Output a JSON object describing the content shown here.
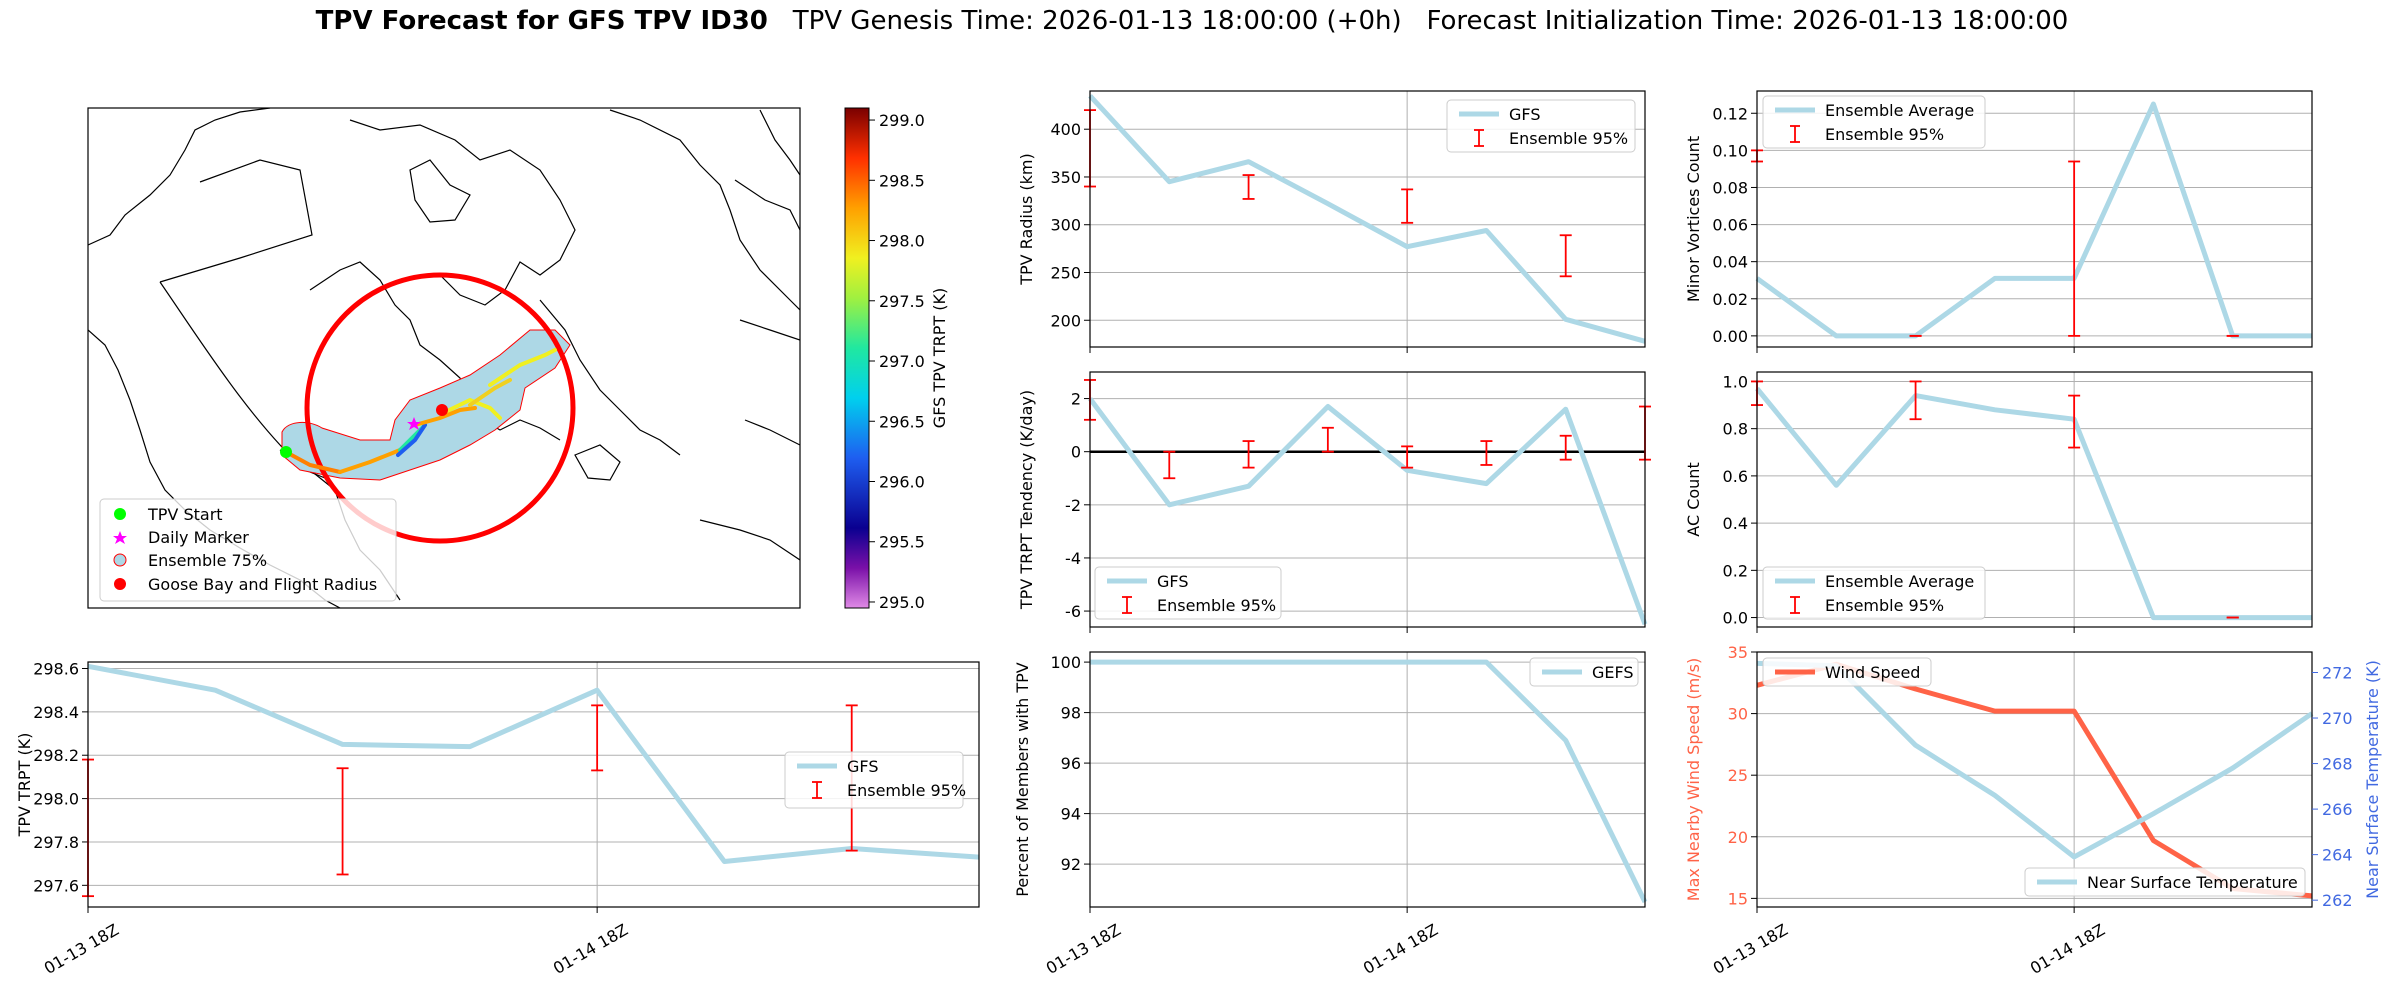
{
  "title": {
    "main": "TPV Forecast for GFS TPV ID30",
    "genesis": "TPV Genesis Time: 2026-01-13 18:00:00 (+0h)",
    "init": "Forecast Initialization Time: 2026-01-13 18:00:00"
  },
  "colors": {
    "gfs_line": "#add8e6",
    "error_bar": "#ff0000",
    "zero_line": "#000000",
    "wind": "#ff6347",
    "temp_axis": "#4169e1",
    "grid": "#b0b0b0"
  },
  "map": {
    "legend": [
      {
        "label": "TPV Start",
        "icon": "green-circle-icon",
        "color": "#00ff00"
      },
      {
        "label": "Daily Marker",
        "icon": "magenta-star-icon",
        "color": "#ff00ff"
      },
      {
        "label": "Ensemble 75%",
        "icon": "patch-icon",
        "color": "#add8e6"
      },
      {
        "label": "Goose Bay and Flight Radius",
        "icon": "red-circle-icon",
        "color": "#ff0000"
      }
    ],
    "colorbar": {
      "label": "GFS TPV TRPT (K)",
      "ticks": [
        "299.0",
        "298.5",
        "298.0",
        "297.5",
        "297.0",
        "296.5",
        "296.0",
        "295.5",
        "295.0"
      ],
      "min": 294.95,
      "max": 299.1
    }
  },
  "chart_data": [
    {
      "id": "trpt",
      "type": "line",
      "ylabel": "TPV TRPT (K)",
      "x": [
        0,
        1,
        2,
        3,
        4,
        5,
        6,
        7
      ],
      "x_ticks": [
        {
          "x": 0,
          "label": "01-13 18Z"
        },
        {
          "x": 4,
          "label": "01-14 18Z"
        }
      ],
      "xlim": [
        0,
        7
      ],
      "ylim": [
        297.5,
        298.63
      ],
      "y_ticks": [
        "297.6",
        "297.8",
        "298.0",
        "298.2",
        "298.4",
        "298.6"
      ],
      "legend": [
        "GFS",
        "Ensemble 95%"
      ],
      "series": [
        {
          "name": "GFS",
          "values": [
            298.61,
            298.5,
            298.25,
            298.24,
            298.5,
            297.71,
            297.77,
            297.73
          ]
        }
      ],
      "error_bars": [
        {
          "x": 0,
          "low": 297.55,
          "high": 298.18
        },
        {
          "x": 2,
          "low": 297.65,
          "high": 298.14
        },
        {
          "x": 4,
          "low": 298.13,
          "high": 298.43
        },
        {
          "x": 6,
          "low": 297.76,
          "high": 298.43
        }
      ]
    },
    {
      "id": "radius",
      "type": "line",
      "ylabel": "TPV Radius (km)",
      "x": [
        0,
        1,
        2,
        3,
        4,
        5,
        6,
        7
      ],
      "x_ticks": [
        {
          "x": 0,
          "label": ""
        },
        {
          "x": 4,
          "label": ""
        }
      ],
      "xlim": [
        0,
        7
      ],
      "ylim": [
        172,
        440
      ],
      "y_ticks": [
        "200",
        "250",
        "300",
        "350",
        "400"
      ],
      "legend": [
        "GFS",
        "Ensemble 95%"
      ],
      "series": [
        {
          "name": "GFS",
          "values": [
            435,
            345,
            366,
            322,
            277,
            294,
            201,
            178
          ]
        }
      ],
      "error_bars": [
        {
          "x": 0,
          "low": 340,
          "high": 420
        },
        {
          "x": 2,
          "low": 327,
          "high": 352
        },
        {
          "x": 4,
          "low": 302,
          "high": 337
        },
        {
          "x": 6,
          "low": 246,
          "high": 289
        }
      ]
    },
    {
      "id": "tendency",
      "type": "line",
      "ylabel": "TPV TRPT Tendency (K/day)",
      "x": [
        0,
        1,
        2,
        3,
        4,
        5,
        6,
        7
      ],
      "x_ticks": [
        {
          "x": 0,
          "label": ""
        },
        {
          "x": 4,
          "label": ""
        }
      ],
      "xlim": [
        0,
        7
      ],
      "ylim": [
        -6.6,
        3.0
      ],
      "y_ticks": [
        "-6",
        "-4",
        "-2",
        "0",
        "2"
      ],
      "legend": [
        "GFS",
        "Ensemble 95%"
      ],
      "zero_line": true,
      "series": [
        {
          "name": "GFS",
          "values": [
            2.0,
            -2.0,
            -1.3,
            1.7,
            -0.7,
            -1.2,
            1.6,
            -6.5
          ]
        }
      ],
      "error_bars": [
        {
          "x": 0,
          "low": 1.2,
          "high": 2.7
        },
        {
          "x": 1,
          "low": -1.0,
          "high": 0.0
        },
        {
          "x": 2,
          "low": -0.6,
          "high": 0.4
        },
        {
          "x": 3,
          "low": 0.0,
          "high": 0.9
        },
        {
          "x": 4,
          "low": -0.6,
          "high": 0.2
        },
        {
          "x": 5,
          "low": -0.5,
          "high": 0.4
        },
        {
          "x": 6,
          "low": -0.3,
          "high": 0.6
        },
        {
          "x": 7,
          "low": -0.3,
          "high": 1.7
        }
      ]
    },
    {
      "id": "members",
      "type": "line",
      "ylabel": "Percent of Members with TPV",
      "x": [
        0,
        1,
        2,
        3,
        4,
        5,
        6,
        7
      ],
      "x_ticks": [
        {
          "x": 0,
          "label": "01-13 18Z"
        },
        {
          "x": 4,
          "label": "01-14 18Z"
        }
      ],
      "xlim": [
        0,
        7
      ],
      "ylim": [
        90.3,
        100.4
      ],
      "y_ticks": [
        "92",
        "94",
        "96",
        "98",
        "100"
      ],
      "legend": [
        "GEFS"
      ],
      "series": [
        {
          "name": "GEFS",
          "values": [
            100,
            100,
            100,
            100,
            100,
            100,
            96.9,
            90.5
          ]
        }
      ]
    },
    {
      "id": "minor",
      "type": "line",
      "ylabel": "Minor Vortices Count",
      "x": [
        0,
        1,
        2,
        3,
        4,
        5,
        6,
        7
      ],
      "x_ticks": [
        {
          "x": 0,
          "label": ""
        },
        {
          "x": 4,
          "label": ""
        }
      ],
      "xlim": [
        0,
        7
      ],
      "ylim": [
        -0.006,
        0.132
      ],
      "y_ticks": [
        "0.00",
        "0.02",
        "0.04",
        "0.06",
        "0.08",
        "0.10",
        "0.12"
      ],
      "legend": [
        "Ensemble Average",
        "Ensemble 95%"
      ],
      "series": [
        {
          "name": "Ensemble Average",
          "values": [
            0.031,
            0.0,
            0.0,
            0.031,
            0.031,
            0.125,
            0.0,
            0.0
          ]
        }
      ],
      "error_bars": [
        {
          "x": 0,
          "low": 0.094,
          "high": 0.1
        },
        {
          "x": 2,
          "low": 0.0,
          "high": 0.0
        },
        {
          "x": 4,
          "low": 0.0,
          "high": 0.094
        },
        {
          "x": 6,
          "low": 0.0,
          "high": 0.0
        }
      ]
    },
    {
      "id": "ac",
      "type": "line",
      "ylabel": "AC Count",
      "x": [
        0,
        1,
        2,
        3,
        4,
        5,
        6,
        7
      ],
      "x_ticks": [
        {
          "x": 0,
          "label": ""
        },
        {
          "x": 4,
          "label": ""
        }
      ],
      "xlim": [
        0,
        7
      ],
      "ylim": [
        -0.04,
        1.04
      ],
      "y_ticks": [
        "0.0",
        "0.2",
        "0.4",
        "0.6",
        "0.8",
        "1.0"
      ],
      "legend": [
        "Ensemble Average",
        "Ensemble 95%"
      ],
      "series": [
        {
          "name": "Ensemble Average",
          "values": [
            0.97,
            0.56,
            0.94,
            0.88,
            0.84,
            0.0,
            0.0,
            0.0
          ]
        }
      ],
      "error_bars": [
        {
          "x": 0,
          "low": 0.9,
          "high": 1.0
        },
        {
          "x": 2,
          "low": 0.84,
          "high": 1.0
        },
        {
          "x": 4,
          "low": 0.72,
          "high": 0.94
        },
        {
          "x": 6,
          "low": 0.0,
          "high": 0.0
        }
      ]
    },
    {
      "id": "wind_temp",
      "type": "line",
      "ylabel": "Max Nearby Wind Speed (m/s)",
      "ylabel_right": "Near Surface Temperature (K)",
      "x": [
        0,
        1,
        2,
        3,
        4,
        5,
        6,
        7
      ],
      "x_ticks": [
        {
          "x": 0,
          "label": "01-13 18Z"
        },
        {
          "x": 4,
          "label": "01-14 18Z"
        }
      ],
      "xlim": [
        0,
        7
      ],
      "ylim": [
        14.3,
        35.0
      ],
      "y_ticks": [
        "15",
        "20",
        "25",
        "30",
        "35"
      ],
      "ylim_right": [
        261.7,
        272.9
      ],
      "y_ticks_right": [
        "262",
        "264",
        "266",
        "268",
        "270",
        "272"
      ],
      "legend": [
        "Wind Speed"
      ],
      "legend_right": [
        "Near Surface Temperature"
      ],
      "series": [
        {
          "name": "Wind Speed",
          "axis": "left",
          "values": [
            32.3,
            34.0,
            32.0,
            30.2,
            30.2,
            19.7,
            15.8,
            15.2
          ]
        },
        {
          "name": "Near Surface Temperature",
          "axis": "right",
          "values": [
            272.4,
            272.3,
            268.8,
            266.6,
            263.9,
            265.8,
            267.8,
            270.2
          ]
        }
      ]
    }
  ]
}
